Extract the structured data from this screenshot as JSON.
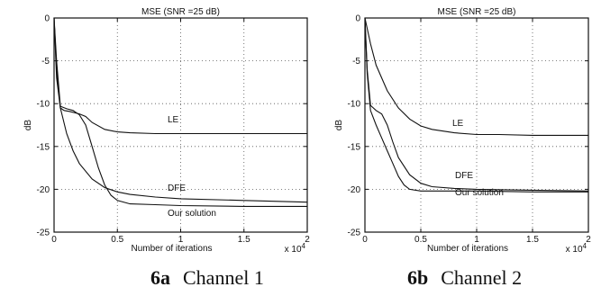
{
  "chart_data": [
    {
      "type": "line",
      "title": "MSE (SNR =25 dB)",
      "xlabel": "Number of iterations",
      "x_multiplier": "x 10^4",
      "x_multiplier_text": "x 10",
      "x_multiplier_exp": "4",
      "ylabel": "dB",
      "xlim": [
        0,
        2
      ],
      "ylim": [
        -25,
        0
      ],
      "xticks": [
        0,
        0.5,
        1,
        1.5,
        2
      ],
      "xtick_labels": [
        "0",
        "0.5",
        "1",
        "1.5",
        "2"
      ],
      "yticks": [
        0,
        -5,
        -10,
        -15,
        -20,
        -25
      ],
      "ytick_labels": [
        "0",
        "-5",
        "-10",
        "-15",
        "-20",
        "-25"
      ],
      "grid": true,
      "series": [
        {
          "name": "LE",
          "x": [
            0,
            0.02,
            0.05,
            0.08,
            0.12,
            0.2,
            0.25,
            0.3,
            0.4,
            0.5,
            0.6,
            0.8,
            1.0,
            1.2,
            1.5,
            2.0
          ],
          "y": [
            0,
            -7,
            -10.5,
            -10.8,
            -10.9,
            -11.2,
            -11.5,
            -12.2,
            -13.0,
            -13.3,
            -13.4,
            -13.5,
            -13.5,
            -13.5,
            -13.5,
            -13.5
          ]
        },
        {
          "name": "DFE",
          "x": [
            0,
            0.02,
            0.05,
            0.1,
            0.15,
            0.2,
            0.3,
            0.4,
            0.5,
            0.6,
            0.8,
            1.0,
            1.5,
            2.0
          ],
          "y": [
            0,
            -6,
            -10.5,
            -13.5,
            -15.5,
            -17,
            -18.8,
            -19.8,
            -20.3,
            -20.6,
            -20.9,
            -21.1,
            -21.3,
            -21.5
          ]
        },
        {
          "name": "Our solution",
          "x": [
            0,
            0.02,
            0.05,
            0.1,
            0.15,
            0.2,
            0.25,
            0.3,
            0.35,
            0.4,
            0.45,
            0.5,
            0.6,
            0.8,
            1.0,
            1.5,
            2.0
          ],
          "y": [
            0,
            -5,
            -10.3,
            -10.6,
            -10.8,
            -11.3,
            -12.5,
            -15,
            -17.5,
            -19.5,
            -20.7,
            -21.3,
            -21.7,
            -21.8,
            -21.9,
            -22.0,
            -22.0
          ]
        }
      ]
    },
    {
      "type": "line",
      "title": "MSE (SNR =25 dB)",
      "xlabel": "Number of iterations",
      "x_multiplier": "x 10^4",
      "x_multiplier_text": "x 10",
      "x_multiplier_exp": "4",
      "ylabel": "dB",
      "xlim": [
        0,
        2
      ],
      "ylim": [
        -25,
        0
      ],
      "xticks": [
        0,
        0.5,
        1,
        1.5,
        2
      ],
      "xtick_labels": [
        "0",
        "0.5",
        "1",
        "1.5",
        "2"
      ],
      "yticks": [
        0,
        -5,
        -10,
        -15,
        -20,
        -25
      ],
      "ytick_labels": [
        "0",
        "-5",
        "-10",
        "-15",
        "-20",
        "-25"
      ],
      "grid": true,
      "series": [
        {
          "name": "LE",
          "x": [
            0,
            0.05,
            0.1,
            0.2,
            0.3,
            0.4,
            0.5,
            0.6,
            0.8,
            1.0,
            1.2,
            1.5,
            2.0
          ],
          "y": [
            0,
            -3,
            -5.5,
            -8.5,
            -10.5,
            -11.8,
            -12.6,
            -13.0,
            -13.4,
            -13.6,
            -13.6,
            -13.7,
            -13.7
          ]
        },
        {
          "name": "DFE",
          "x": [
            0,
            0.02,
            0.05,
            0.1,
            0.15,
            0.2,
            0.25,
            0.3,
            0.4,
            0.5,
            0.6,
            0.8,
            1.0,
            1.5,
            2.0
          ],
          "y": [
            0,
            -6,
            -10.2,
            -10.8,
            -11.2,
            -12.5,
            -14.5,
            -16.3,
            -18.3,
            -19.3,
            -19.7,
            -19.9,
            -20.0,
            -20.1,
            -20.2
          ]
        },
        {
          "name": "Our solution",
          "x": [
            0,
            0.02,
            0.05,
            0.1,
            0.15,
            0.2,
            0.25,
            0.3,
            0.35,
            0.4,
            0.5,
            0.6,
            0.8,
            1.0,
            1.5,
            2.0
          ],
          "y": [
            0,
            -6.5,
            -10.8,
            -12.5,
            -14,
            -15.5,
            -17,
            -18.5,
            -19.5,
            -20.0,
            -20.2,
            -20.2,
            -20.2,
            -20.2,
            -20.3,
            -20.3
          ]
        }
      ]
    }
  ],
  "captions": [
    {
      "label": "6a",
      "text": "Channel 1"
    },
    {
      "label": "6b",
      "text": "Channel 2"
    }
  ]
}
